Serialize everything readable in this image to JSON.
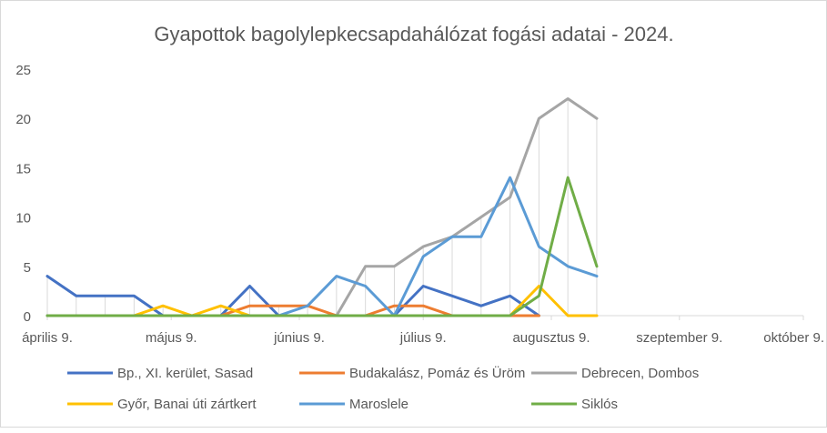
{
  "chart_data": {
    "type": "line",
    "title": "Gyapottok bagolylepkecsapdahálózat fogási adatai - 2024.",
    "xlabel": "",
    "ylabel": "",
    "ylim": [
      0,
      25
    ],
    "yticks": [
      0,
      5,
      10,
      15,
      20,
      25
    ],
    "xticks": [
      {
        "label": "április 9.",
        "date": "2024-04-09"
      },
      {
        "label": "május 9.",
        "date": "2024-05-09"
      },
      {
        "label": "június 9.",
        "date": "2024-06-09"
      },
      {
        "label": "július 9.",
        "date": "2024-07-09"
      },
      {
        "label": "augusztus 9.",
        "date": "2024-08-09"
      },
      {
        "label": "szeptember 9.",
        "date": "2024-09-09"
      },
      {
        "label": "október 9.",
        "date": "2024-10-09"
      }
    ],
    "xlim": [
      "2024-04-09",
      "2024-10-09"
    ],
    "dates": [
      "2024-04-09",
      "2024-04-16",
      "2024-04-23",
      "2024-04-30",
      "2024-05-07",
      "2024-05-14",
      "2024-05-21",
      "2024-05-28",
      "2024-06-04",
      "2024-06-11",
      "2024-06-18",
      "2024-06-25",
      "2024-07-02",
      "2024-07-09",
      "2024-07-16",
      "2024-07-23",
      "2024-07-30",
      "2024-08-06",
      "2024-08-13",
      "2024-08-20",
      "2024-08-27"
    ],
    "drop_lines": true,
    "grid": false,
    "legend": "bottom",
    "series": [
      {
        "name": "Bp., XI. kerület, Sasad",
        "color": "#4472C4",
        "values": [
          4,
          2,
          2,
          2,
          0,
          0,
          0,
          3,
          0,
          0,
          0,
          0,
          0,
          3,
          2,
          1,
          2,
          0,
          null,
          null,
          null
        ]
      },
      {
        "name": "Budakalász, Pomáz és Üröm",
        "color": "#ED7D31",
        "values": [
          0,
          0,
          0,
          0,
          0,
          0,
          0,
          1,
          1,
          1,
          0,
          0,
          1,
          1,
          0,
          0,
          0,
          0,
          null,
          null,
          null
        ]
      },
      {
        "name": "Debrecen, Dombos",
        "color": "#A5A5A5",
        "values": [
          0,
          0,
          0,
          0,
          0,
          0,
          0,
          0,
          0,
          0,
          0,
          5,
          5,
          7,
          8,
          10,
          12,
          20,
          22,
          20,
          null
        ]
      },
      {
        "name": "Győr, Banai úti zártkert",
        "color": "#FFC000",
        "values": [
          0,
          0,
          0,
          0,
          1,
          0,
          1,
          0,
          0,
          0,
          0,
          0,
          0,
          0,
          0,
          0,
          0,
          3,
          0,
          0,
          null
        ]
      },
      {
        "name": "Maroslele",
        "color": "#5B9BD5",
        "values": [
          0,
          0,
          0,
          0,
          0,
          0,
          0,
          0,
          0,
          1,
          4,
          3,
          0,
          6,
          8,
          8,
          14,
          7,
          5,
          4,
          null
        ]
      },
      {
        "name": "Siklós",
        "color": "#70AD47",
        "values": [
          0,
          0,
          0,
          0,
          0,
          0,
          0,
          0,
          0,
          0,
          0,
          0,
          0,
          0,
          0,
          0,
          0,
          2,
          14,
          5,
          null
        ]
      }
    ]
  }
}
